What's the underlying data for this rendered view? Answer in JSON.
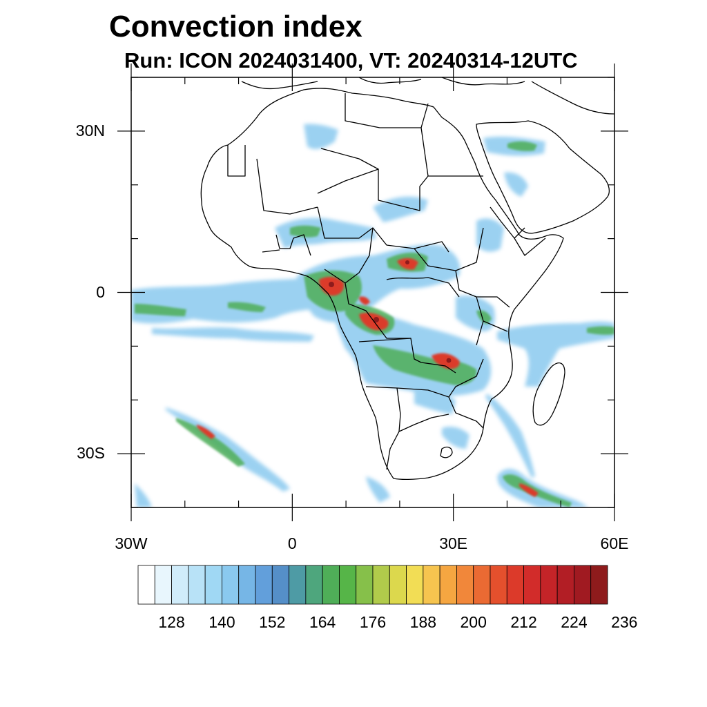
{
  "title": "Convection index",
  "subtitle": {
    "run_label": "Run:",
    "run_value": "ICON 2024031400,",
    "vt_label": "VT:",
    "vt_value": "20240314-12UTC"
  },
  "map": {
    "lon_range": [
      -30,
      60
    ],
    "lat_range": [
      -40,
      40
    ],
    "lat_tick_labels": [
      {
        "lat": 30,
        "label": "30N"
      },
      {
        "lat": 0,
        "label": "0"
      },
      {
        "lat": -30,
        "label": "30S"
      }
    ],
    "lon_tick_labels": [
      {
        "lon": -30,
        "label": "30W"
      },
      {
        "lon": 0,
        "label": "0"
      },
      {
        "lon": 30,
        "label": "30E"
      },
      {
        "lon": 60,
        "label": "60E"
      }
    ]
  },
  "colorbar": {
    "colors": [
      "#ffffff",
      "#e8f6fd",
      "#d0ecfa",
      "#b8e2f7",
      "#a0d8f4",
      "#8ac9ef",
      "#76b6e6",
      "#629fdb",
      "#558fc8",
      "#4e9ba5",
      "#4ea67d",
      "#4fae58",
      "#56b548",
      "#86c04a",
      "#b1cb4b",
      "#dcd84d",
      "#f2dd55",
      "#f6c44f",
      "#f5a641",
      "#f1873a",
      "#ea6a33",
      "#e4502d",
      "#dc3a2a",
      "#d22c2a",
      "#c42428",
      "#b21e25",
      "#a01a21",
      "#8e1b1c"
    ],
    "labels": [
      "128",
      "140",
      "152",
      "164",
      "176",
      "188",
      "200",
      "212",
      "224",
      "236"
    ]
  },
  "colors": {
    "low": "#8ac9ef",
    "mid": "#4fae58",
    "high": "#dc3a2a",
    "extreme": "#8e1b1c",
    "border": "#000000"
  }
}
